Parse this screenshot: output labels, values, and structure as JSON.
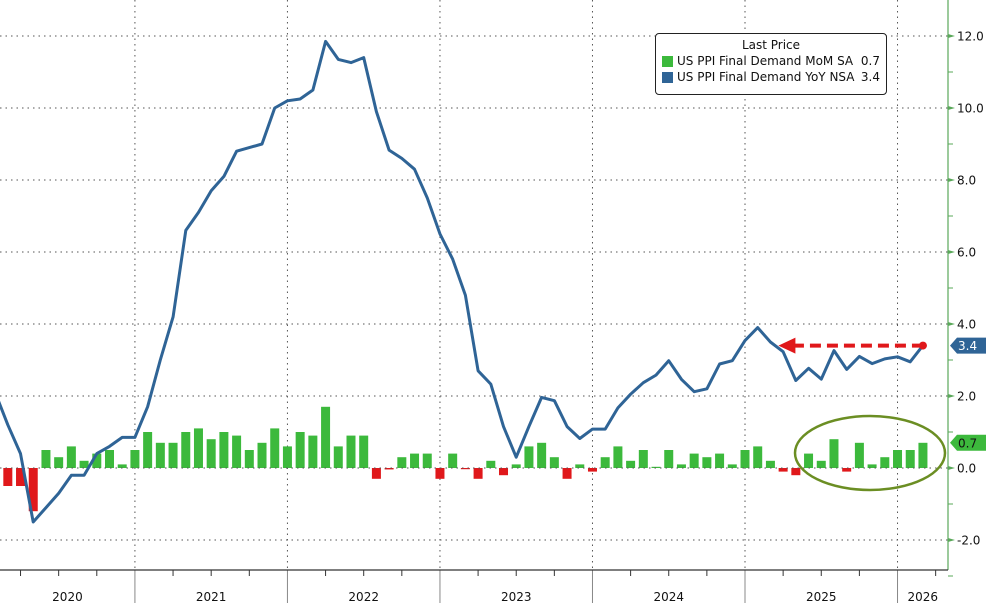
{
  "chart_data": {
    "type": "bar+line",
    "legend": {
      "title": "Last Price",
      "placement": "top-right",
      "items": [
        {
          "name": "US PPI Final Demand MoM SA",
          "last": "0.7",
          "color": "#3cb93c"
        },
        {
          "name": "US PPI Final Demand YoY NSA",
          "last": "3.4",
          "color": "#2f6496"
        }
      ]
    },
    "x": [
      "2020-01",
      "2020-02",
      "2020-03",
      "2020-04",
      "2020-05",
      "2020-06",
      "2020-07",
      "2020-08",
      "2020-09",
      "2020-10",
      "2020-11",
      "2020-12",
      "2021-01",
      "2021-02",
      "2021-03",
      "2021-04",
      "2021-05",
      "2021-06",
      "2021-07",
      "2021-08",
      "2021-09",
      "2021-10",
      "2021-11",
      "2021-12",
      "2022-01",
      "2022-02",
      "2022-03",
      "2022-04",
      "2022-05",
      "2022-06",
      "2022-07",
      "2022-08",
      "2022-09",
      "2022-10",
      "2022-11",
      "2022-12",
      "2023-01",
      "2023-02",
      "2023-03",
      "2023-04",
      "2023-05",
      "2023-06",
      "2023-07",
      "2023-08",
      "2023-09",
      "2023-10",
      "2023-11",
      "2023-12",
      "2024-01",
      "2024-02",
      "2024-03",
      "2024-04",
      "2024-05",
      "2024-06",
      "2024-07",
      "2024-08",
      "2024-09",
      "2024-10",
      "2024-11",
      "2024-12",
      "2025-01",
      "2025-02",
      "2025-03",
      "2025-04",
      "2025-05",
      "2025-06",
      "2025-07",
      "2025-08",
      "2025-09",
      "2025-10",
      "2025-11",
      "2025-12",
      "2026-01",
      "2026-02"
    ],
    "series": [
      {
        "name": "US PPI Final Demand MoM SA",
        "type": "bar",
        "positive_color": "#3cb93c",
        "negative_color": "#e0181b",
        "values": [
          null,
          -0.5,
          -0.5,
          -1.2,
          0.5,
          0.3,
          0.6,
          0.2,
          0.4,
          0.5,
          0.1,
          0.5,
          1.0,
          0.7,
          0.7,
          1.0,
          1.1,
          0.8,
          1.0,
          0.9,
          0.5,
          0.7,
          1.1,
          0.6,
          1.0,
          0.9,
          1.7,
          0.6,
          0.9,
          0.9,
          -0.3,
          -0.04,
          0.3,
          0.4,
          0.4,
          -0.3,
          0.4,
          -0.02,
          -0.3,
          0.2,
          -0.2,
          0.1,
          0.6,
          0.7,
          0.3,
          -0.3,
          0.1,
          -0.1,
          0.3,
          0.6,
          0.2,
          0.5,
          0.03,
          0.5,
          0.1,
          0.4,
          0.3,
          0.4,
          0.1,
          0.5,
          0.6,
          0.2,
          -0.1,
          -0.2,
          0.4,
          0.2,
          0.8,
          -0.1,
          0.7,
          0.1,
          0.3,
          0.5,
          0.5,
          0.7
        ]
      },
      {
        "name": "US PPI Final Demand YoY NSA",
        "type": "line",
        "color": "#2f6496",
        "values": [
          2.1,
          1.2,
          0.4,
          -1.5,
          -1.1,
          -0.7,
          -0.2,
          -0.2,
          0.4,
          0.6,
          0.85,
          0.85,
          1.7,
          3.0,
          4.2,
          6.6,
          7.1,
          7.7,
          8.1,
          8.8,
          8.9,
          9.0,
          10.0,
          10.2,
          10.25,
          10.5,
          11.85,
          11.35,
          11.26,
          11.4,
          9.9,
          8.83,
          8.6,
          8.3,
          7.5,
          6.5,
          5.8,
          4.8,
          2.7,
          2.33,
          1.15,
          0.3,
          1.15,
          1.96,
          1.87,
          1.15,
          0.82,
          1.08,
          1.08,
          1.67,
          2.05,
          2.37,
          2.58,
          2.98,
          2.46,
          2.12,
          2.2,
          2.89,
          2.98,
          3.54,
          3.9,
          3.5,
          3.23,
          2.43,
          2.77,
          2.47,
          3.26,
          2.74,
          3.1,
          2.9,
          3.03,
          3.09,
          2.95,
          3.4
        ]
      }
    ],
    "x_tick_labels": [
      "2020",
      "2021",
      "2022",
      "2023",
      "2024",
      "2025",
      "2026"
    ],
    "y_axis": {
      "side": "right",
      "ylim": [
        -2.9,
        12.9
      ],
      "ticks": [
        12.0,
        10.0,
        8.0,
        6.0,
        4.0,
        2.0,
        0.0,
        -2.0
      ],
      "tick_labels": [
        "12.0",
        "10.0",
        "8.0",
        "6.0",
        "4.0",
        "2.0",
        "0.0",
        "-2.0"
      ],
      "color": "#5aa85a"
    },
    "grid": true,
    "value_tags": [
      {
        "value": 3.4,
        "label": "3.4",
        "color": "#2f6496"
      },
      {
        "value": 0.7,
        "label": "0.7",
        "color": "#3cb93c"
      }
    ],
    "annotations": [
      {
        "type": "dashed-arrow",
        "color": "#e0181b",
        "level": 3.4,
        "from": "2026-02",
        "to": "2025-02"
      },
      {
        "type": "ellipse",
        "color": "#6b8e23",
        "around": "2025-04 to 2026-02 MoM bars"
      }
    ]
  }
}
